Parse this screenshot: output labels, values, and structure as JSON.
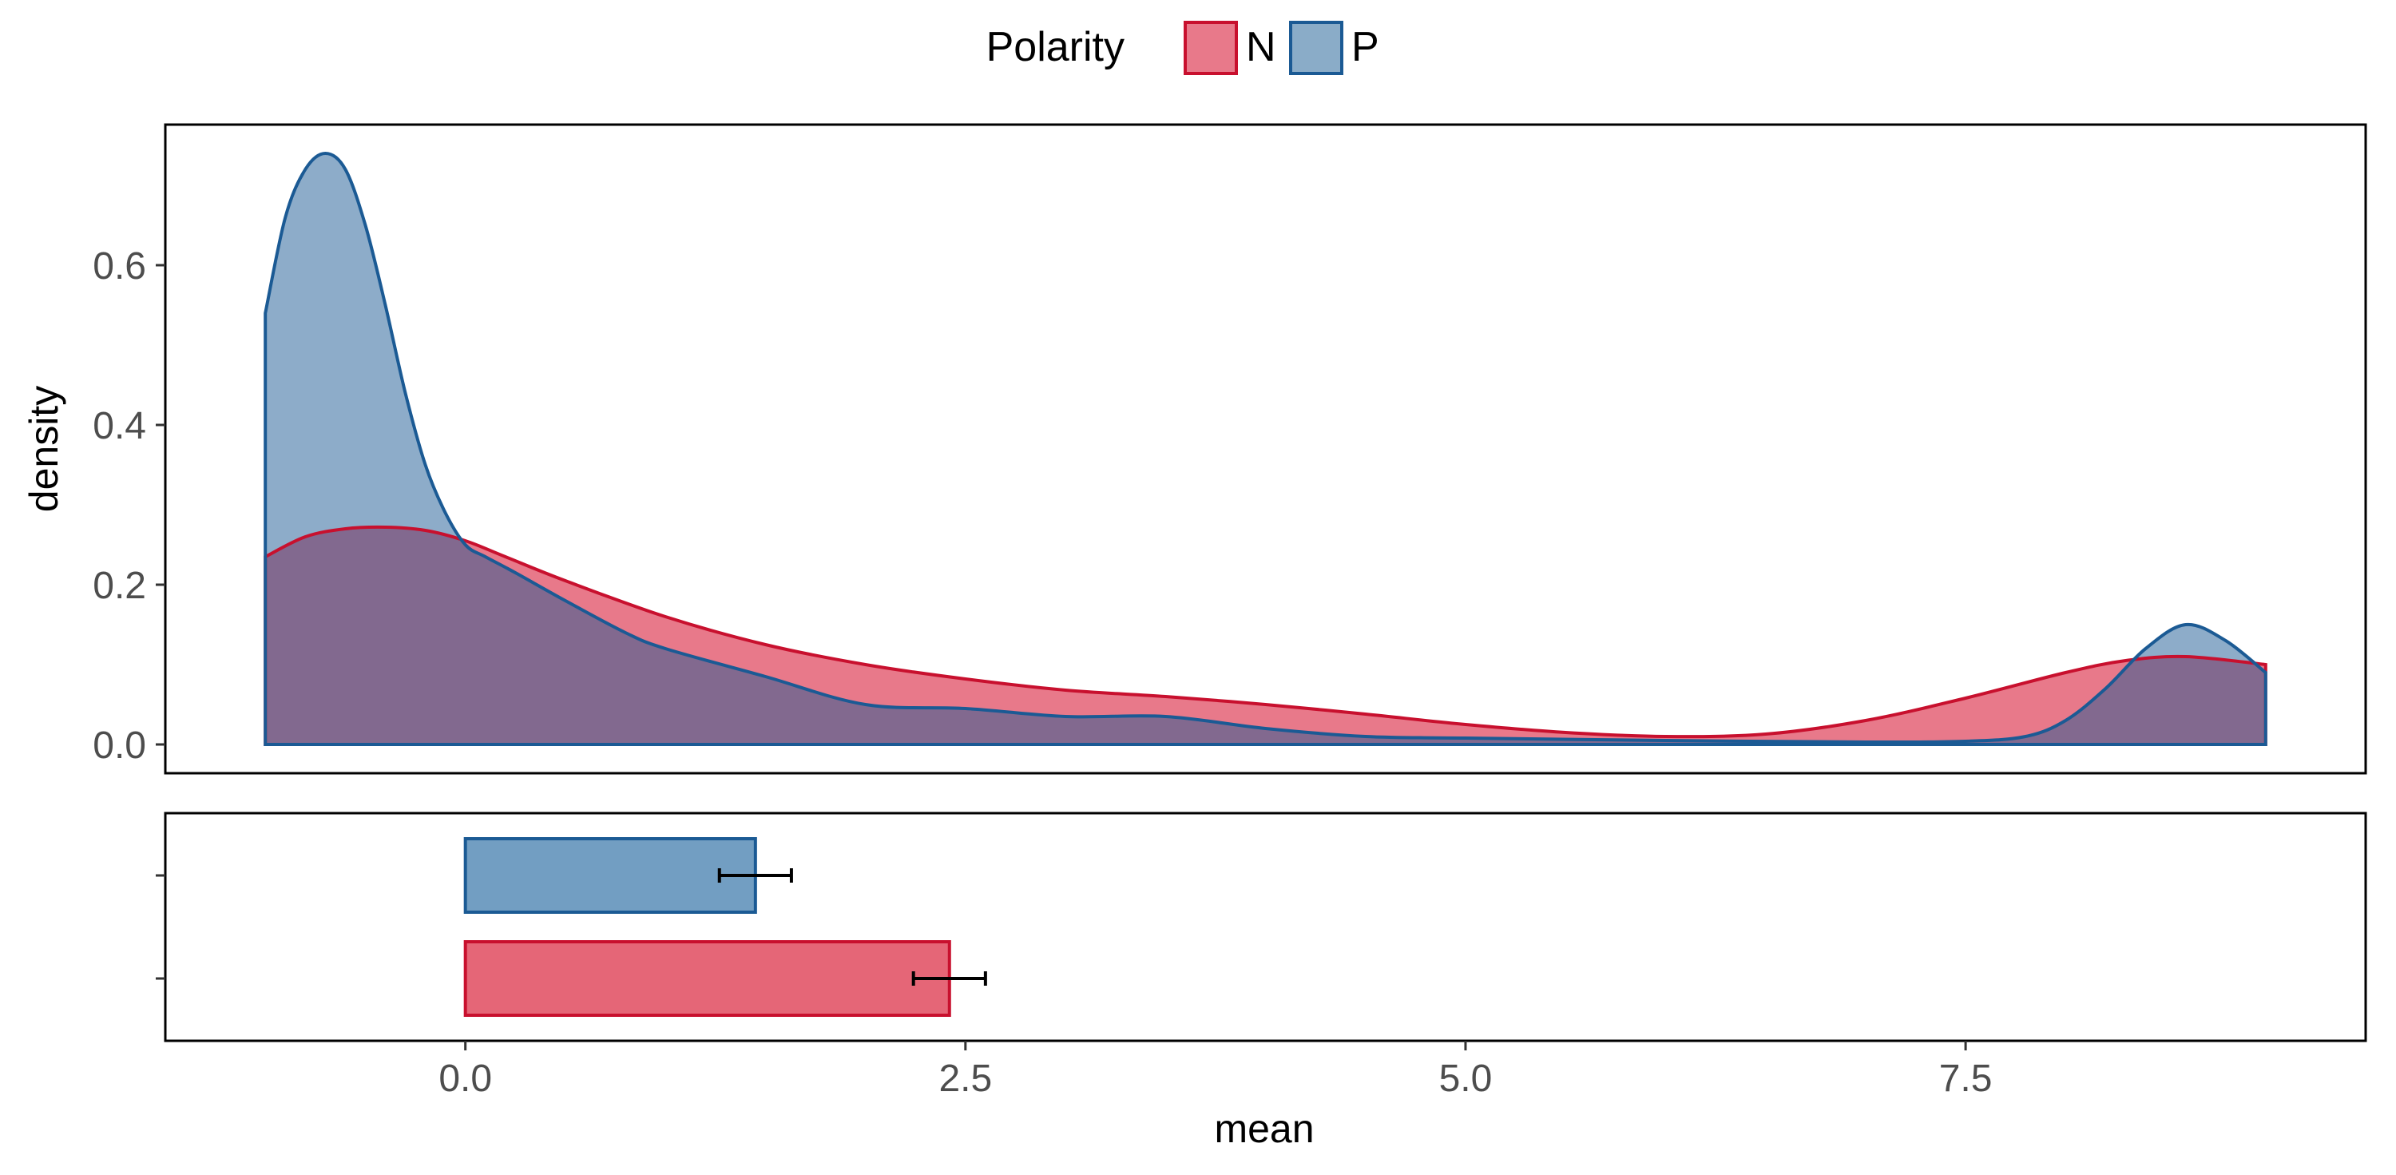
{
  "legend": {
    "title": "Polarity",
    "items": [
      {
        "label": "N",
        "fill": "#E8798A",
        "stroke": "#C8102E"
      },
      {
        "label": "P",
        "fill": "#8AACC8",
        "stroke": "#1B5A94"
      }
    ]
  },
  "overlap_fill": "#7E6B8F",
  "chart_data": [
    {
      "type": "area",
      "subtype": "density",
      "title": "",
      "xlabel": "",
      "ylabel": "density",
      "xlim": [
        -1.5,
        9.5
      ],
      "ylim": [
        0,
        0.75
      ],
      "yticks": [
        0.0,
        0.2,
        0.4,
        0.6
      ],
      "ytick_labels": [
        "0.0",
        "0.2",
        "0.4",
        "0.6"
      ],
      "grid": false,
      "legend_position": "top",
      "series": [
        {
          "name": "N",
          "color": "#C8102E",
          "fill": "#E8798A",
          "x": [
            -1.0,
            -0.8,
            -0.6,
            -0.4,
            -0.2,
            0.0,
            0.2,
            0.5,
            1.0,
            1.5,
            2.0,
            2.5,
            3.0,
            3.5,
            4.0,
            4.5,
            5.0,
            5.5,
            6.0,
            6.5,
            7.0,
            7.5,
            8.0,
            8.3,
            8.6,
            9.0
          ],
          "y": [
            0.235,
            0.26,
            0.27,
            0.272,
            0.268,
            0.255,
            0.235,
            0.205,
            0.16,
            0.125,
            0.1,
            0.082,
            0.068,
            0.06,
            0.05,
            0.038,
            0.025,
            0.015,
            0.01,
            0.013,
            0.03,
            0.058,
            0.09,
            0.105,
            0.11,
            0.1
          ]
        },
        {
          "name": "P",
          "color": "#1B5A94",
          "fill": "#8AACC8",
          "x": [
            -1.0,
            -0.9,
            -0.8,
            -0.7,
            -0.6,
            -0.5,
            -0.4,
            -0.3,
            -0.2,
            -0.1,
            0.0,
            0.1,
            0.25,
            0.5,
            0.8,
            1.0,
            1.5,
            2.0,
            2.5,
            3.0,
            3.5,
            4.0,
            4.5,
            5.0,
            6.0,
            7.0,
            7.5,
            7.8,
            8.0,
            8.2,
            8.4,
            8.6,
            8.8,
            9.0
          ],
          "y": [
            0.54,
            0.66,
            0.72,
            0.74,
            0.72,
            0.65,
            0.55,
            0.44,
            0.35,
            0.29,
            0.25,
            0.235,
            0.215,
            0.18,
            0.14,
            0.12,
            0.085,
            0.05,
            0.045,
            0.035,
            0.035,
            0.02,
            0.01,
            0.008,
            0.005,
            0.003,
            0.004,
            0.01,
            0.03,
            0.07,
            0.12,
            0.15,
            0.13,
            0.09
          ]
        }
      ]
    },
    {
      "type": "bar",
      "orientation": "horizontal",
      "title": "",
      "xlabel": "mean",
      "ylabel": "",
      "xlim": [
        -1.5,
        9.5
      ],
      "xticks": [
        0.0,
        2.5,
        5.0,
        7.5
      ],
      "xtick_labels": [
        "0.0",
        "2.5",
        "5.0",
        "7.5"
      ],
      "grid": false,
      "categories": [
        "P",
        "N"
      ],
      "bars": [
        {
          "name": "P",
          "value": 1.45,
          "error_low": 1.27,
          "error_high": 1.63,
          "fill": "#729EC2",
          "stroke": "#1B5A94"
        },
        {
          "name": "N",
          "value": 2.42,
          "error_low": 2.24,
          "error_high": 2.6,
          "fill": "#E56677",
          "stroke": "#C8102E"
        }
      ]
    }
  ]
}
